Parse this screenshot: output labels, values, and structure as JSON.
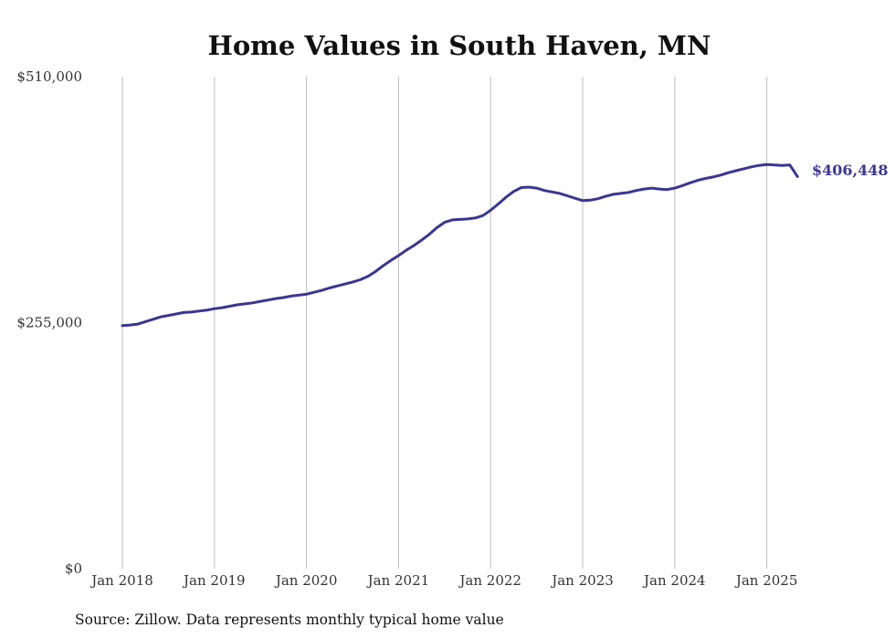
{
  "chart_data": {
    "type": "line",
    "title": "Home Values in South Haven, MN",
    "xlabel": "",
    "ylabel": "",
    "ylim": [
      0,
      510000
    ],
    "xlim": [
      "2018-01",
      "2025-05"
    ],
    "grid": {
      "vertical": true,
      "horizontal": false
    },
    "legend": "none",
    "x_tick_labels": [
      "Jan 2018",
      "Jan 2019",
      "Jan 2020",
      "Jan 2021",
      "Jan 2022",
      "Jan 2023",
      "Jan 2024",
      "Jan 2025"
    ],
    "y_tick_labels": [
      "$0",
      "$255,000",
      "$510,000"
    ],
    "y_tick_values": [
      0,
      255000,
      510000
    ],
    "end_label": "$406,448",
    "line_color": "#3a3693",
    "series": [
      {
        "x": [
          "2018-01",
          "2018-02",
          "2018-03",
          "2018-04",
          "2018-05",
          "2018-06",
          "2018-07",
          "2018-08",
          "2018-09",
          "2018-10",
          "2018-11",
          "2018-12",
          "2019-01",
          "2019-02",
          "2019-03",
          "2019-04",
          "2019-05",
          "2019-06",
          "2019-07",
          "2019-08",
          "2019-09",
          "2019-10",
          "2019-11",
          "2019-12",
          "2020-01",
          "2020-02",
          "2020-03",
          "2020-04",
          "2020-05",
          "2020-06",
          "2020-07",
          "2020-08",
          "2020-09",
          "2020-10",
          "2020-11",
          "2020-12",
          "2021-01",
          "2021-02",
          "2021-03",
          "2021-04",
          "2021-05",
          "2021-06",
          "2021-07",
          "2021-08",
          "2021-09",
          "2021-10",
          "2021-11",
          "2021-12",
          "2022-01",
          "2022-02",
          "2022-03",
          "2022-04",
          "2022-05",
          "2022-06",
          "2022-07",
          "2022-08",
          "2022-09",
          "2022-10",
          "2022-11",
          "2022-12",
          "2023-01",
          "2023-02",
          "2023-03",
          "2023-04",
          "2023-05",
          "2023-06",
          "2023-07",
          "2023-08",
          "2023-09",
          "2023-10",
          "2023-11",
          "2023-12",
          "2024-01",
          "2024-02",
          "2024-03",
          "2024-04",
          "2024-05",
          "2024-06",
          "2024-07",
          "2024-08",
          "2024-09",
          "2024-10",
          "2024-11",
          "2024-12",
          "2025-01",
          "2025-02",
          "2025-03",
          "2025-04",
          "2025-05"
        ],
        "values": [
          252000,
          252500,
          253500,
          256000,
          258500,
          261000,
          262500,
          264000,
          265500,
          266000,
          267000,
          268000,
          269500,
          270500,
          272000,
          273500,
          274500,
          275500,
          277000,
          278500,
          280000,
          281000,
          282500,
          283500,
          284500,
          286500,
          288500,
          291000,
          293000,
          295000,
          297000,
          299500,
          303000,
          308000,
          314000,
          319500,
          324500,
          330000,
          335000,
          340500,
          346500,
          353500,
          359000,
          361500,
          362000,
          362500,
          363500,
          366000,
          371500,
          378000,
          385000,
          391000,
          395000,
          395500,
          394500,
          392000,
          390500,
          389000,
          386500,
          384000,
          381500,
          382000,
          383500,
          386000,
          388000,
          389000,
          390000,
          392000,
          393500,
          394500,
          393500,
          393000,
          394500,
          397000,
          400000,
          402500,
          404500,
          406000,
          408000,
          410500,
          412500,
          414500,
          416500,
          418000,
          419000,
          418500,
          418000,
          418500,
          406448
        ]
      }
    ]
  },
  "footer": {
    "source": "Source: Zillow. Data represents monthly typical home value"
  }
}
